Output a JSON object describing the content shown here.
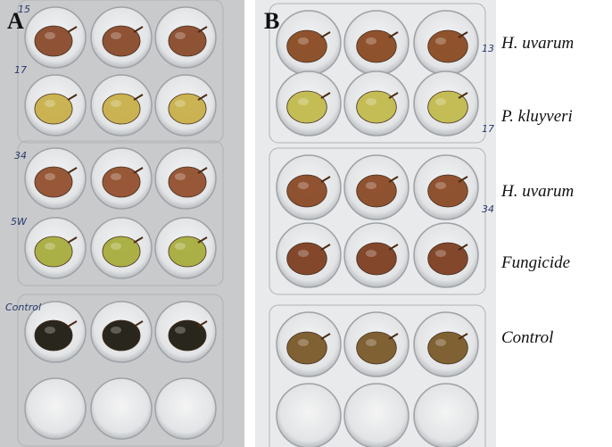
{
  "panels": [
    {
      "label": "A",
      "plate_labels": [
        "15",
        "17",
        "34",
        "5W",
        "Control"
      ]
    },
    {
      "label": "B",
      "plate_labels": [
        "13",
        "17",
        "34"
      ]
    }
  ],
  "row_labels": [
    "H. uvarum",
    "P. kluyveri",
    "H. uvarum",
    "Fungicide",
    "Control"
  ]
}
